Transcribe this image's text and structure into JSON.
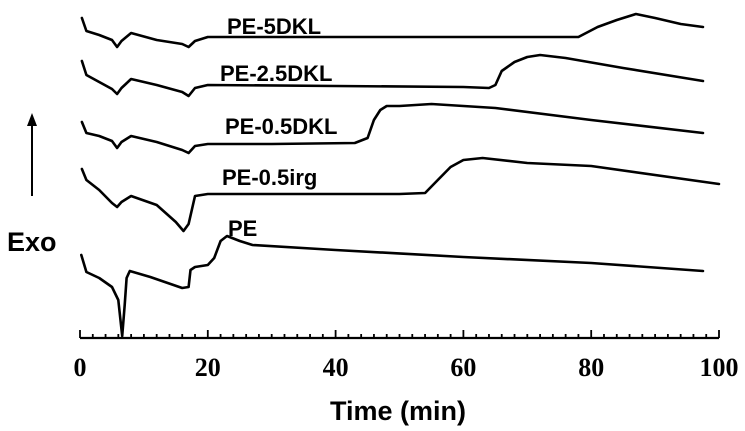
{
  "chart_data": {
    "type": "line",
    "title": "",
    "xlabel": "Time (min)",
    "ylabel": "Exo",
    "xlim": [
      0,
      100
    ],
    "x_ticks": [
      "0",
      "20",
      "40",
      "60",
      "80",
      "100"
    ],
    "minor_tick_step": 2,
    "y_arrow": "up",
    "grid": false,
    "legend": "none",
    "series": [
      {
        "name": "PE-5DKL",
        "points": [
          [
            0.3,
            18
          ],
          [
            1,
            31
          ],
          [
            3,
            35
          ],
          [
            5,
            40
          ],
          [
            5.8,
            47
          ],
          [
            6.5,
            41
          ],
          [
            8,
            33
          ],
          [
            12,
            40
          ],
          [
            16,
            44
          ],
          [
            17,
            47
          ],
          [
            18,
            41
          ],
          [
            19.5,
            38
          ],
          [
            20,
            37
          ],
          [
            40,
            37
          ],
          [
            60,
            37
          ],
          [
            70,
            37
          ],
          [
            78,
            37
          ],
          [
            81,
            27
          ],
          [
            84,
            20
          ],
          [
            87,
            14
          ],
          [
            90,
            18
          ],
          [
            94,
            24
          ],
          [
            97.5,
            27
          ]
        ],
        "color": "#000000"
      },
      {
        "name": "PE-2.5DKL",
        "points": [
          [
            0.3,
            61
          ],
          [
            1,
            75
          ],
          [
            3,
            82
          ],
          [
            5,
            89
          ],
          [
            5.8,
            94
          ],
          [
            6.5,
            88
          ],
          [
            8,
            79
          ],
          [
            12,
            85
          ],
          [
            16,
            92
          ],
          [
            17,
            96
          ],
          [
            18,
            88
          ],
          [
            20,
            85
          ],
          [
            40,
            86
          ],
          [
            60,
            87
          ],
          [
            64,
            88
          ],
          [
            65,
            85
          ],
          [
            66,
            71
          ],
          [
            68,
            62
          ],
          [
            70,
            57
          ],
          [
            72,
            55
          ],
          [
            76,
            58
          ],
          [
            85,
            68
          ],
          [
            97.5,
            81
          ]
        ],
        "color": "#000000"
      },
      {
        "name": "PE-0.5DKL",
        "points": [
          [
            0.3,
            122
          ],
          [
            1,
            133
          ],
          [
            3,
            136
          ],
          [
            5,
            141
          ],
          [
            5.8,
            148
          ],
          [
            6.5,
            142
          ],
          [
            8,
            136
          ],
          [
            12,
            142
          ],
          [
            16,
            150
          ],
          [
            17,
            153
          ],
          [
            18,
            146
          ],
          [
            20,
            144
          ],
          [
            30,
            144
          ],
          [
            43,
            143
          ],
          [
            45,
            138
          ],
          [
            46,
            120
          ],
          [
            47,
            110
          ],
          [
            48,
            106
          ],
          [
            50,
            106
          ],
          [
            55,
            104
          ],
          [
            65,
            108
          ],
          [
            80,
            120
          ],
          [
            97.5,
            133
          ]
        ],
        "color": "#000000"
      },
      {
        "name": "PE-0.5irg",
        "points": [
          [
            0.3,
            169
          ],
          [
            1,
            180
          ],
          [
            3,
            190
          ],
          [
            5,
            203
          ],
          [
            5.8,
            207
          ],
          [
            6.5,
            202
          ],
          [
            8,
            196
          ],
          [
            12,
            205
          ],
          [
            15,
            222
          ],
          [
            16.2,
            231
          ],
          [
            17,
            224
          ],
          [
            18,
            196
          ],
          [
            20,
            194
          ],
          [
            40,
            194
          ],
          [
            50,
            194
          ],
          [
            54,
            193
          ],
          [
            56,
            180
          ],
          [
            58,
            167
          ],
          [
            60,
            160
          ],
          [
            63,
            158
          ],
          [
            70,
            163
          ],
          [
            80,
            166
          ],
          [
            100,
            184
          ]
        ],
        "color": "#000000"
      },
      {
        "name": "PE",
        "points": [
          [
            0.2,
            255
          ],
          [
            1,
            272
          ],
          [
            3,
            278
          ],
          [
            5,
            287
          ],
          [
            6,
            300
          ],
          [
            6.6,
            336
          ],
          [
            7,
            305
          ],
          [
            7.3,
            278
          ],
          [
            7.8,
            271
          ],
          [
            11,
            277
          ],
          [
            16,
            288
          ],
          [
            17,
            287
          ],
          [
            17.3,
            270
          ],
          [
            18,
            267
          ],
          [
            20,
            265
          ],
          [
            21,
            258
          ],
          [
            22,
            241
          ],
          [
            23,
            236
          ],
          [
            25,
            241
          ],
          [
            27,
            245
          ],
          [
            40,
            250
          ],
          [
            60,
            257
          ],
          [
            80,
            263
          ],
          [
            97.5,
            271
          ]
        ],
        "color": "#000000"
      }
    ],
    "y_units_note": "relative exo signal (offset stacked curves)",
    "series_labels": [
      "PE-5DKL",
      "PE-2.5DKL",
      "PE-0.5DKL",
      "PE-0.5irg",
      "PE"
    ]
  }
}
